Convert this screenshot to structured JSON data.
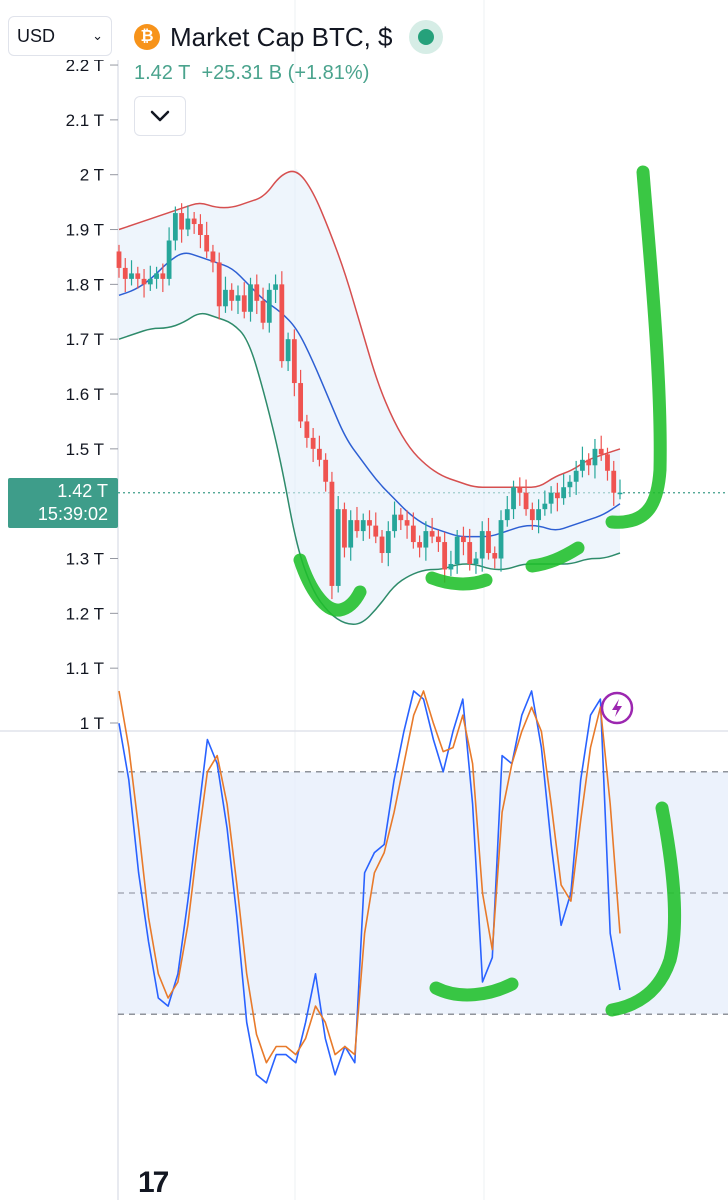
{
  "currency_selector": {
    "value": "USD"
  },
  "header": {
    "icon": "bitcoin-icon",
    "title": "Market Cap BTC, $",
    "price": "1.42 T",
    "change": "+25.31 B",
    "change_pct": "(+1.81%)"
  },
  "price_label": {
    "price": "1.42 T",
    "countdown": "15:39:02"
  },
  "colors": {
    "up": "#26a69a",
    "down": "#ef5350",
    "bb_upper": "#d64f4f",
    "bb_basis": "#2d5fd3",
    "bb_lower": "#2e8b6b",
    "stoch_k": "#2962ff",
    "stoch_d": "#e87a2a",
    "annotation": "#1fbf2a"
  },
  "chart_data": [
    {
      "type": "candlestick",
      "title": "",
      "y_axis": {
        "ylim": [
          1.0,
          2.2
        ],
        "ticks": [
          "2.2 T",
          "2.1 T",
          "2 T",
          "1.9 T",
          "1.8 T",
          "1.7 T",
          "1.6 T",
          "1.5 T",
          "1.4 T",
          "1.3 T",
          "1.2 T",
          "1.1 T",
          "1 T"
        ],
        "tick_values": [
          2.2,
          2.1,
          2.0,
          1.9,
          1.8,
          1.7,
          1.6,
          1.5,
          1.4,
          1.3,
          1.2,
          1.1,
          1.0
        ]
      },
      "current_price": 1.42,
      "close": [
        1.83,
        1.81,
        1.82,
        1.81,
        1.8,
        1.81,
        1.82,
        1.81,
        1.88,
        1.93,
        1.9,
        1.92,
        1.91,
        1.89,
        1.86,
        1.84,
        1.76,
        1.79,
        1.77,
        1.78,
        1.75,
        1.8,
        1.77,
        1.73,
        1.79,
        1.8,
        1.66,
        1.7,
        1.62,
        1.55,
        1.52,
        1.5,
        1.48,
        1.44,
        1.25,
        1.39,
        1.32,
        1.37,
        1.35,
        1.37,
        1.36,
        1.34,
        1.31,
        1.35,
        1.38,
        1.37,
        1.36,
        1.33,
        1.32,
        1.35,
        1.34,
        1.33,
        1.28,
        1.29,
        1.34,
        1.33,
        1.29,
        1.3,
        1.35,
        1.31,
        1.3,
        1.37,
        1.39,
        1.43,
        1.42,
        1.39,
        1.37,
        1.39,
        1.4,
        1.42,
        1.41,
        1.43,
        1.44,
        1.46,
        1.48,
        1.47,
        1.5,
        1.49,
        1.46,
        1.42,
        1.42
      ],
      "bollinger": {
        "upper": [
          1.9,
          1.91,
          1.92,
          1.93,
          1.94,
          1.95,
          1.94,
          1.94,
          1.95,
          1.96,
          2.0,
          2.01,
          1.97,
          1.9,
          1.82,
          1.72,
          1.62,
          1.55,
          1.5,
          1.47,
          1.45,
          1.44,
          1.43,
          1.43,
          1.43,
          1.43,
          1.43,
          1.45,
          1.46,
          1.48,
          1.49,
          1.5
        ],
        "basis": [
          1.78,
          1.79,
          1.81,
          1.84,
          1.86,
          1.85,
          1.84,
          1.83,
          1.8,
          1.77,
          1.75,
          1.72,
          1.66,
          1.59,
          1.52,
          1.48,
          1.44,
          1.41,
          1.38,
          1.36,
          1.35,
          1.34,
          1.34,
          1.34,
          1.35,
          1.36,
          1.36,
          1.35,
          1.36,
          1.37,
          1.38,
          1.4
        ],
        "lower": [
          1.7,
          1.71,
          1.72,
          1.72,
          1.73,
          1.75,
          1.74,
          1.73,
          1.7,
          1.6,
          1.48,
          1.32,
          1.24,
          1.2,
          1.18,
          1.18,
          1.21,
          1.25,
          1.27,
          1.28,
          1.28,
          1.29,
          1.29,
          1.28,
          1.28,
          1.29,
          1.29,
          1.29,
          1.29,
          1.3,
          1.3,
          1.31
        ]
      }
    },
    {
      "type": "line",
      "title": "",
      "ylim": [
        -6,
        106
      ],
      "bands": [
        80,
        50,
        20
      ],
      "series": [
        {
          "color_key": "stoch_k",
          "values": [
            92,
            78,
            55,
            38,
            24,
            22,
            30,
            48,
            68,
            88,
            82,
            66,
            44,
            18,
            5,
            3,
            10,
            10,
            8,
            18,
            30,
            14,
            5,
            12,
            8,
            55,
            60,
            62,
            78,
            90,
            100,
            98,
            88,
            80,
            90,
            98,
            72,
            28,
            34,
            84,
            82,
            94,
            100,
            86,
            62,
            42,
            50,
            78,
            94,
            98,
            40,
            26
          ]
        },
        {
          "color_key": "stoch_d",
          "values": [
            100,
            86,
            66,
            44,
            30,
            24,
            28,
            42,
            62,
            80,
            84,
            72,
            52,
            30,
            15,
            8,
            12,
            12,
            10,
            14,
            22,
            18,
            10,
            12,
            10,
            40,
            55,
            60,
            70,
            82,
            94,
            100,
            92,
            85,
            86,
            94,
            82,
            50,
            36,
            70,
            82,
            90,
            96,
            90,
            72,
            52,
            48,
            68,
            86,
            96,
            72,
            40
          ]
        }
      ]
    }
  ]
}
